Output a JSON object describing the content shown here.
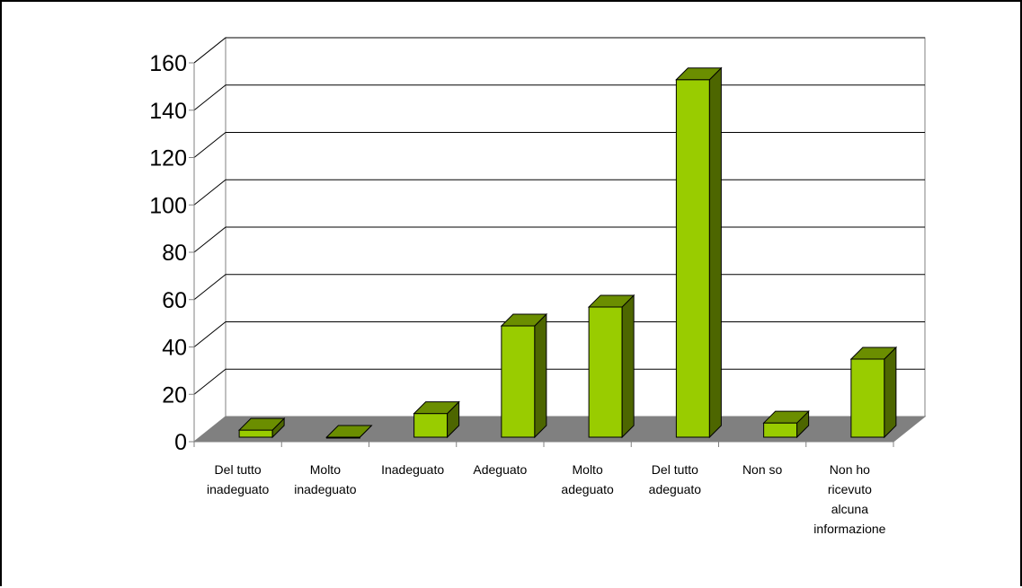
{
  "chart_data": {
    "type": "bar",
    "title": "",
    "xlabel": "",
    "ylabel": "",
    "categories": [
      [
        "Del tutto",
        "inadeguato"
      ],
      [
        "Molto",
        "inadeguato"
      ],
      [
        "Inadeguato"
      ],
      [
        "Adeguato"
      ],
      [
        "Molto",
        "adeguato"
      ],
      [
        "Del tutto",
        "adeguato"
      ],
      [
        "Non so"
      ],
      [
        "Non ho",
        "ricevuto",
        "alcuna",
        "informazione"
      ]
    ],
    "values": [
      3,
      0,
      10,
      47,
      55,
      151,
      6,
      33
    ],
    "ylim": [
      0,
      160
    ],
    "yticks": [
      0,
      20,
      40,
      60,
      80,
      100,
      120,
      140,
      160
    ],
    "grid": true,
    "legend": "none",
    "style": "3d",
    "colors": {
      "bar_front": "#99cc00",
      "bar_side": "#4d6600",
      "bar_top": "#6b8e00",
      "floor": "#808080",
      "gridline": "#000000",
      "wall": "#ffffff"
    }
  }
}
